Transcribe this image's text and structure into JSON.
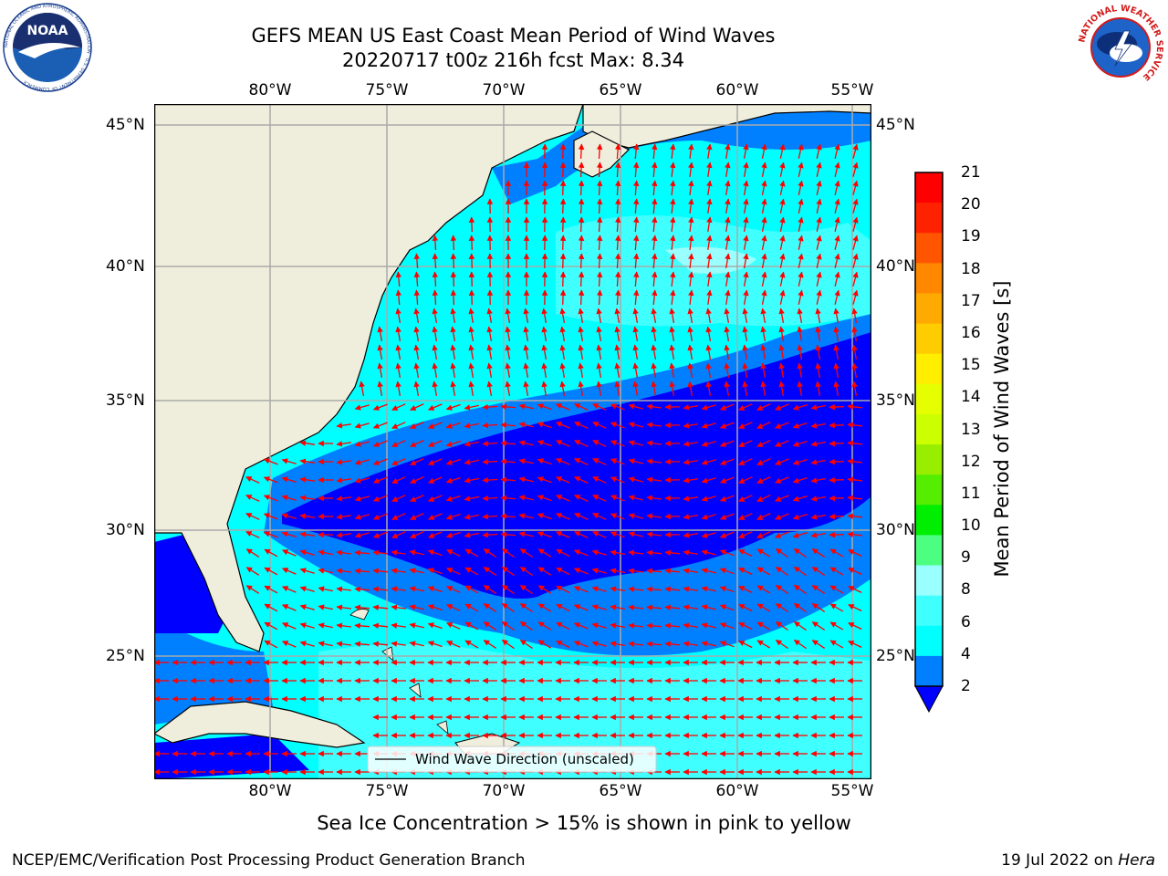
{
  "header": {
    "title_line1": "GEFS MEAN US East Coast Mean Period of Wind Waves",
    "title_line2": "20220717 t00z 216h fcst   Max: 8.34"
  },
  "map": {
    "lon_labels": [
      "80°W",
      "75°W",
      "70°W",
      "65°W",
      "60°W",
      "55°W"
    ],
    "lat_labels": [
      "45°N",
      "40°N",
      "35°N",
      "30°N",
      "25°N"
    ],
    "legend_label": "Wind Wave Direction (unscaled)",
    "land_color": "#efeedd",
    "arrow_color": "#ff0000"
  },
  "colorbar": {
    "title": "Mean Period of Wind Waves [s]",
    "ticks": [
      "2",
      "4",
      "6",
      "8",
      "9",
      "10",
      "11",
      "12",
      "13",
      "14",
      "15",
      "16",
      "17",
      "18",
      "19",
      "20",
      "21"
    ],
    "colors": [
      "#0000ff",
      "#0080ff",
      "#00ffff",
      "#40ffff",
      "#99ffff",
      "#4cff80",
      "#00ee00",
      "#55ee00",
      "#99ee00",
      "#ccff00",
      "#e6ff00",
      "#ffee00",
      "#ffcc00",
      "#ffaa00",
      "#ff8800",
      "#ff5500",
      "#ff2200",
      "#ff0000"
    ]
  },
  "footer": {
    "note": "Sea Ice Concentration > 15% is shown in pink to yellow",
    "left": "NCEP/EMC/Verification Post Processing Product Generation Branch",
    "right_date": "19 Jul 2022 on",
    "right_host": "Hera"
  },
  "logos": {
    "left_text": "NOAA",
    "left_ring": "NATIONAL OCEANIC AND ATMOSPHERIC ADMINISTRATION · U.S. DEPARTMENT OF COMMERCE",
    "right_ring": "NATIONAL WEATHER SERVICE"
  }
}
